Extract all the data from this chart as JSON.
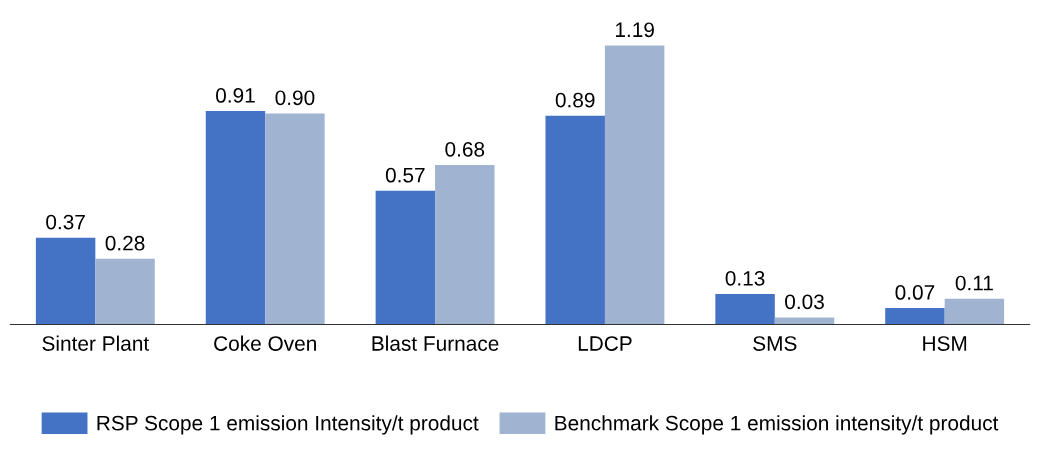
{
  "chart_data": {
    "type": "bar",
    "categories": [
      "Sinter Plant",
      "Coke Oven",
      "Blast Furnace",
      "LDCP",
      "SMS",
      "HSM"
    ],
    "series": [
      {
        "name": "RSP Scope 1 emission Intensity/t product",
        "color": "#4472c4",
        "values": [
          0.37,
          0.91,
          0.57,
          0.89,
          0.13,
          0.07
        ],
        "value_labels": [
          "0.37",
          "0.91",
          "0.57",
          "0.89",
          "0.13",
          "0.07"
        ]
      },
      {
        "name": "Benchmark Scope 1 emission intensity/t product",
        "color": "#a0b3d1",
        "values": [
          0.28,
          0.9,
          0.68,
          1.19,
          0.03,
          0.11
        ],
        "value_labels": [
          "0.28",
          "0.90",
          "0.68",
          "1.19",
          "0.03",
          "0.11"
        ]
      }
    ],
    "legend": "bottom",
    "grid": false
  }
}
